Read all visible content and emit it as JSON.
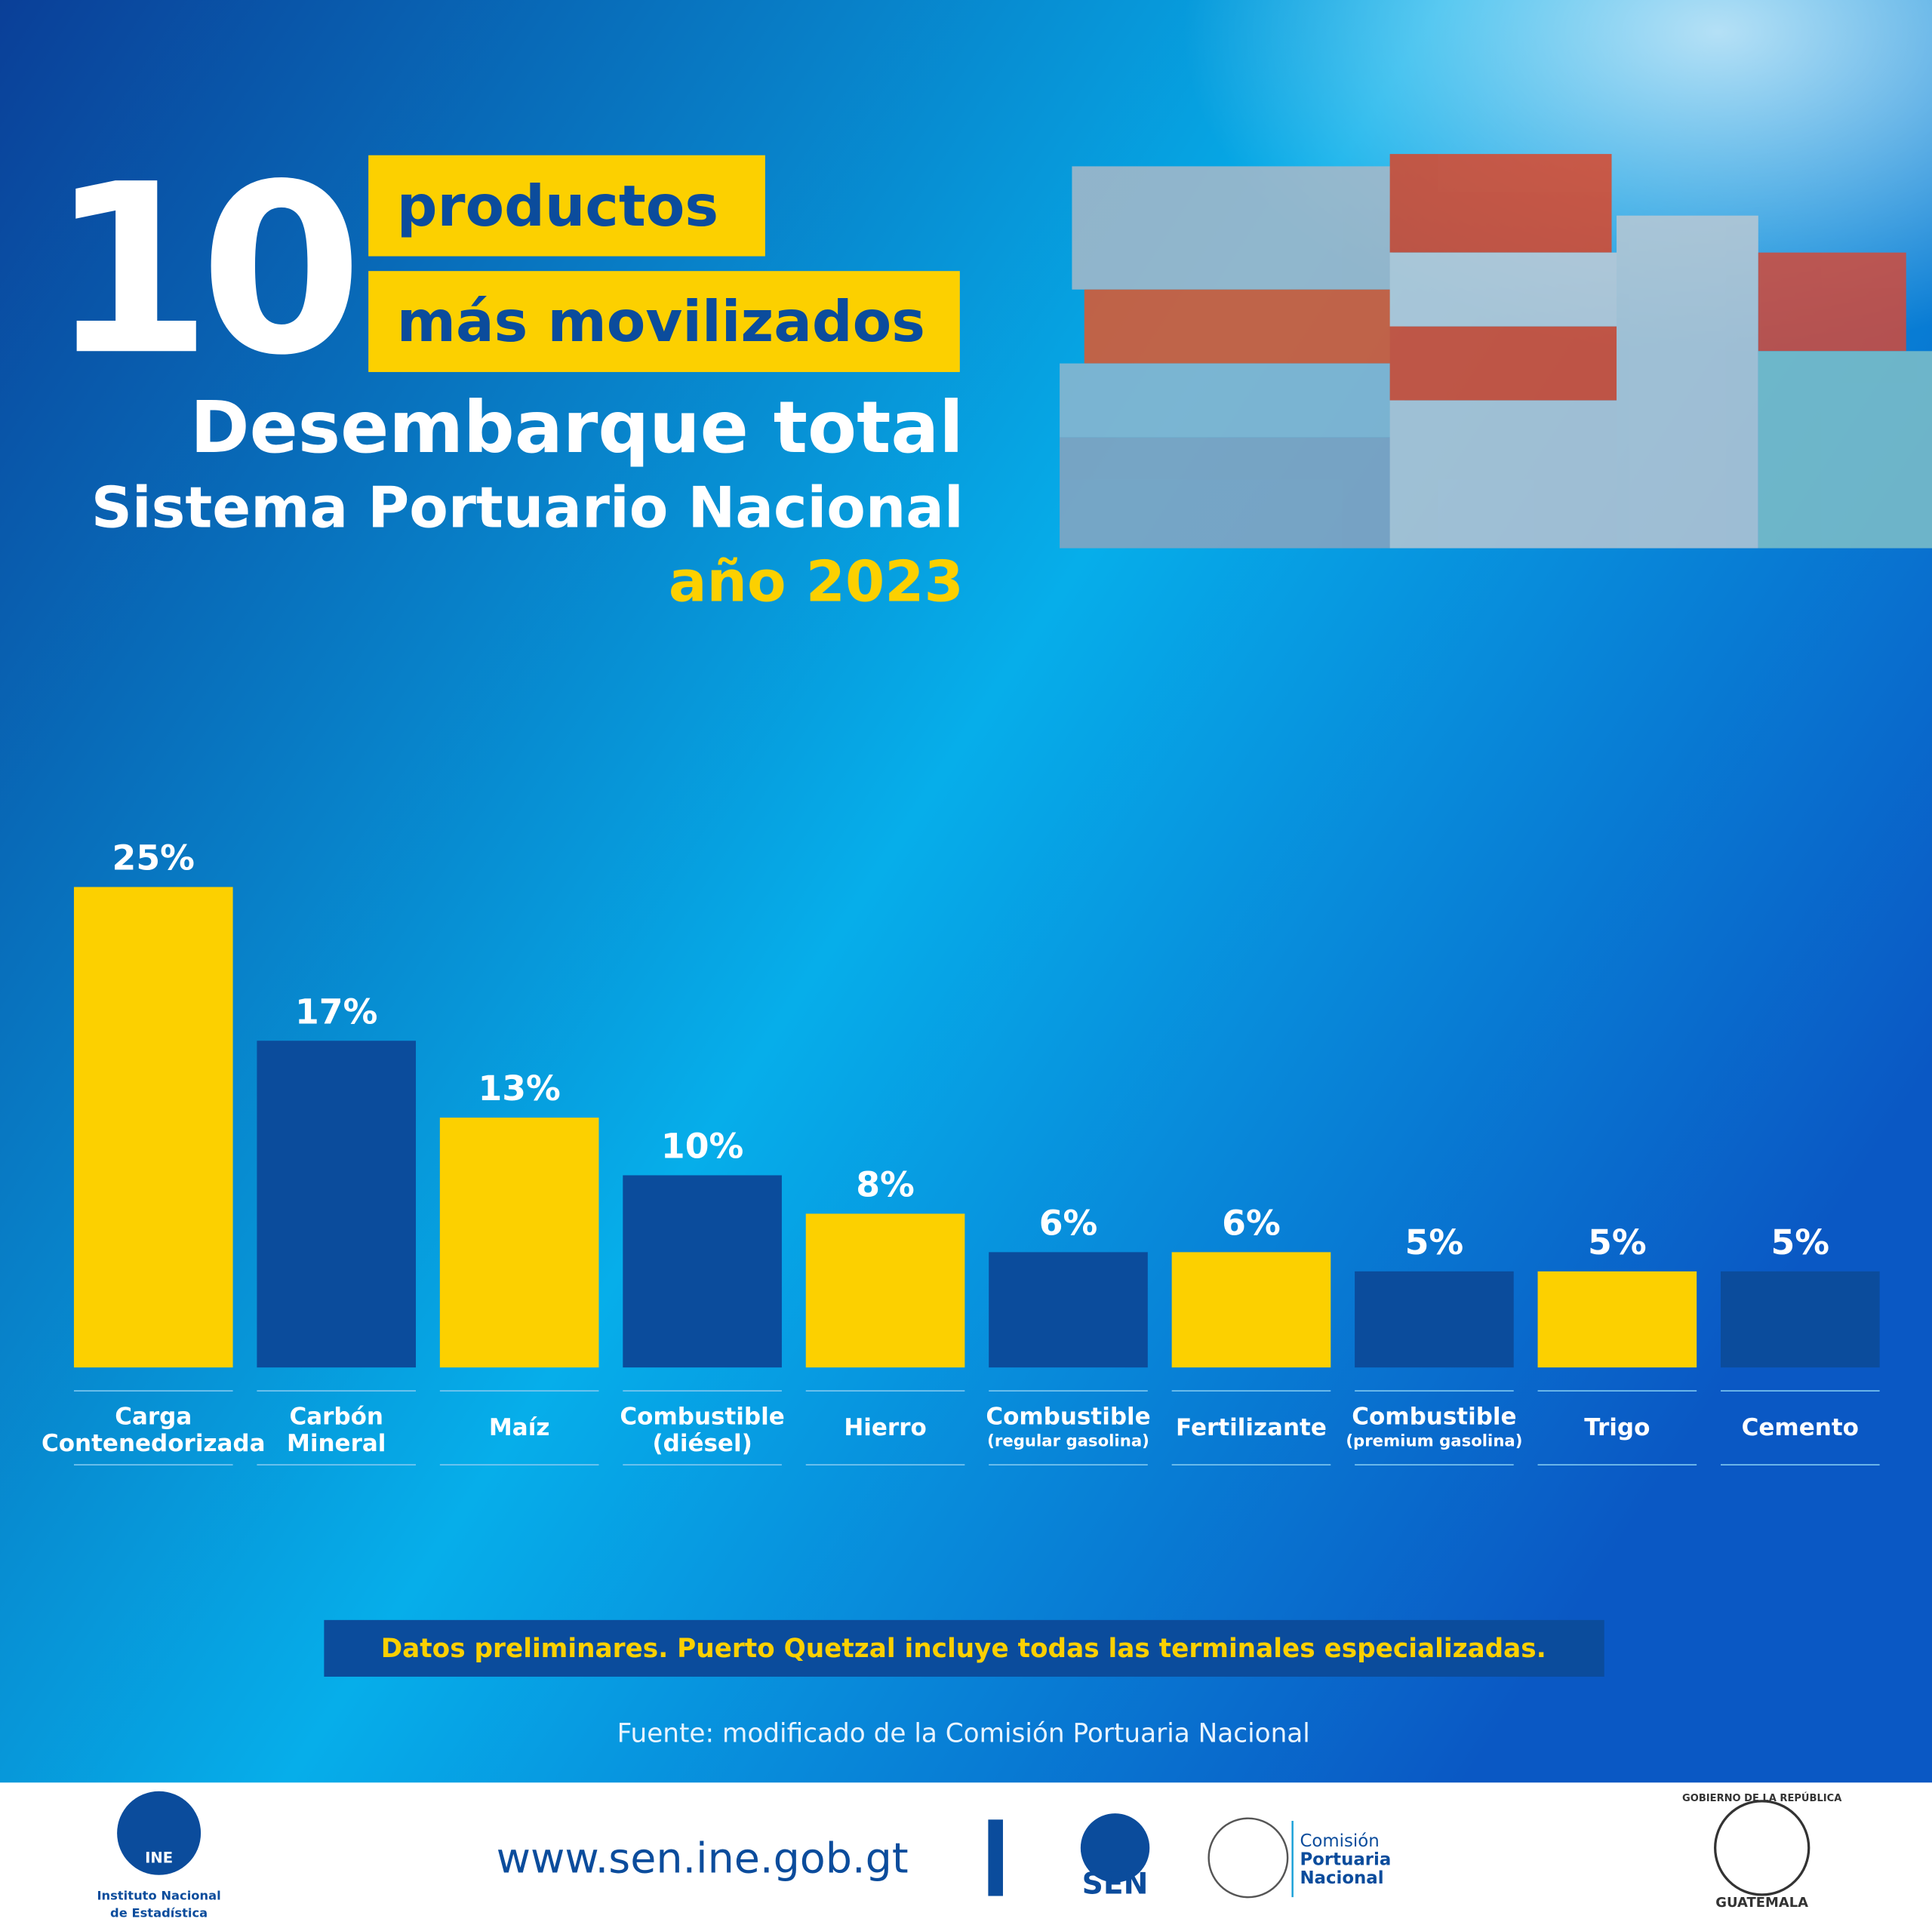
{
  "header": {
    "number": "10",
    "line1": "productos",
    "line2": "más movilizados",
    "subtitle1": "Desembarque total",
    "subtitle2": "Sistema Portuario Nacional",
    "year": "año 2023"
  },
  "chart_data": {
    "type": "bar",
    "categories": [
      "Carga Contenedorizada",
      "Carbón Mineral",
      "Maíz",
      "Combustible (diésel)",
      "Hierro",
      "Combustible (regular gasolina)",
      "Fertilizante",
      "Combustible (premium gasolina)",
      "Trigo",
      "Cemento"
    ],
    "values": [
      25,
      17,
      13,
      10,
      8,
      6,
      6,
      5,
      5,
      5
    ],
    "value_labels": [
      "25%",
      "17%",
      "13%",
      "10%",
      "8%",
      "6%",
      "6%",
      "5%",
      "5%",
      "5%"
    ],
    "colors": [
      "#fcd000",
      "#0b4c9c",
      "#fcd000",
      "#0b4c9c",
      "#fcd000",
      "#0b4c9c",
      "#fcd000",
      "#0b4c9c",
      "#fcd000",
      "#0b4c9c"
    ]
  },
  "note": "Datos preliminares. Puerto Quetzal incluye todas las terminales especializadas.",
  "source": "Fuente: modificado de la Comisión Portuaria Nacional",
  "footer": {
    "url": "www.sen.ine.gob.gt",
    "ine": "INE",
    "ine_name1": "Instituto Nacional",
    "ine_name2": "de Estadística",
    "sen": "SEN",
    "cpn1": "Comisión",
    "cpn2": "Portuaria",
    "cpn3": "Nacional",
    "gob": "GOBIERNO DE LA REPÚBLICA",
    "gt": "GUATEMALA"
  }
}
